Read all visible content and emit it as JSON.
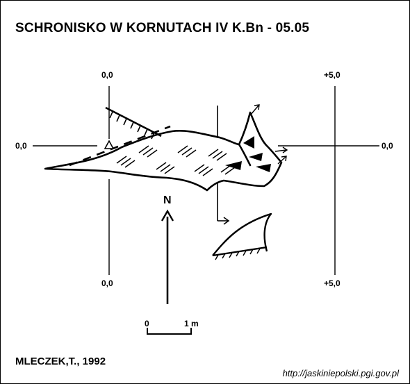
{
  "title": "SCHRONISKO W KORNUTACH IV  K.Bn - 05.05",
  "axes": {
    "left_top": "0,0",
    "left_bottom": "0,0",
    "right_top": "+5,0",
    "right_bottom": "+5,0",
    "row_left": "0,0",
    "row_right": "0,0"
  },
  "north": "N",
  "scale": {
    "zero": "0",
    "one": "1 m"
  },
  "author": "MLECZEK,T., 1992",
  "url": "http://jaskiniepolski.pgi.gov.pl"
}
